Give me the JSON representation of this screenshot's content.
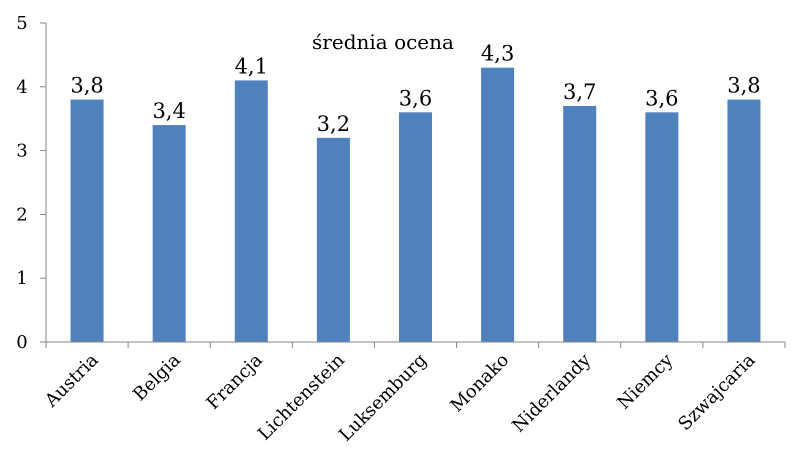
{
  "chart_data": {
    "type": "bar",
    "title": "średnia ocena",
    "categories": [
      "Austria",
      "Belgia",
      "Francja",
      "Lichtenstein",
      "Luksemburg",
      "Monako",
      "Niderlandy",
      "Niemcy",
      "Szwajcaria"
    ],
    "values": [
      3.8,
      3.4,
      4.1,
      3.2,
      3.6,
      4.3,
      3.7,
      3.6,
      3.8
    ],
    "value_labels": [
      "3,8",
      "3,4",
      "4,1",
      "3,2",
      "3,6",
      "4,3",
      "3,7",
      "3,6",
      "3,8"
    ],
    "y_ticks": [
      "0",
      "1",
      "2",
      "3",
      "4",
      "5"
    ],
    "ylim": [
      0,
      5
    ],
    "xlabel": "",
    "ylabel": "",
    "grid": false,
    "legend": "none",
    "bar_color": "#4f81bd",
    "axis_color": "#868686"
  }
}
